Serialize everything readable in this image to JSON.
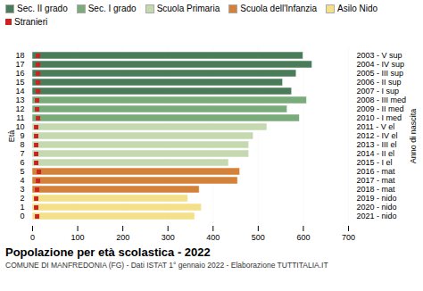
{
  "chart_data": {
    "type": "bar",
    "orientation": "horizontal",
    "title": "Popolazione per età scolastica - 2022",
    "subtitle": "COMUNE DI MANFREDONIA (FG) - Dati ISTAT 1° gennaio 2022 - Elaborazione TUTTITALIA.IT",
    "ylabel": "Età",
    "y2label": "Anno di nascita",
    "categories": [
      18,
      17,
      16,
      15,
      14,
      13,
      12,
      11,
      10,
      9,
      8,
      7,
      6,
      5,
      4,
      3,
      2,
      1,
      0
    ],
    "y2ticks": [
      {
        "value": 18,
        "label": "2003 - V sup"
      },
      {
        "value": 17,
        "label": "2004 - IV sup"
      },
      {
        "value": 16,
        "label": "2005 - III sup"
      },
      {
        "value": 15,
        "label": "2006 - II sup"
      },
      {
        "value": 14,
        "label": "2007 - I sup"
      },
      {
        "value": 13,
        "label": "2008 - III med"
      },
      {
        "value": 12,
        "label": "2009 - II med"
      },
      {
        "value": 11,
        "label": "2010 - I med"
      },
      {
        "value": 10,
        "label": "2011 - V el"
      },
      {
        "value": 9,
        "label": "2012 - IV el"
      },
      {
        "value": 8,
        "label": "2013 - III el"
      },
      {
        "value": 7,
        "label": "2014 - II el"
      },
      {
        "value": 6,
        "label": "2015 - I el"
      },
      {
        "value": 5,
        "label": "2016 - mat"
      },
      {
        "value": 4,
        "label": "2017 - mat"
      },
      {
        "value": 3,
        "label": "2018 - mat"
      },
      {
        "value": 2,
        "label": "2019 - nido"
      },
      {
        "value": 1,
        "label": "2020 - nido"
      },
      {
        "value": 0,
        "label": "2021 - nido"
      }
    ],
    "series": [
      {
        "name": "Sec. II grado",
        "type": "bar",
        "color": "#4a7c59",
        "values": [
          600,
          620,
          585,
          555,
          575,
          null,
          null,
          null,
          null,
          null,
          null,
          null,
          null,
          null,
          null,
          null,
          null,
          null,
          null
        ]
      },
      {
        "name": "Sec. I grado",
        "type": "bar",
        "color": "#7aab7a",
        "values": [
          null,
          null,
          null,
          null,
          null,
          608,
          565,
          592,
          null,
          null,
          null,
          null,
          null,
          null,
          null,
          null,
          null,
          null,
          null
        ]
      },
      {
        "name": "Scuola Primaria",
        "type": "bar",
        "color": "#c5d9b0",
        "values": [
          null,
          null,
          null,
          null,
          null,
          null,
          null,
          null,
          520,
          490,
          480,
          480,
          435,
          null,
          null,
          null,
          null,
          null,
          null
        ]
      },
      {
        "name": "Scuola dell'Infanzia",
        "type": "bar",
        "color": "#d4813a",
        "values": [
          null,
          null,
          null,
          null,
          null,
          null,
          null,
          null,
          null,
          null,
          null,
          null,
          null,
          460,
          455,
          370,
          null,
          null,
          null
        ]
      },
      {
        "name": "Asilo Nido",
        "type": "bar",
        "color": "#f5e08a",
        "values": [
          null,
          null,
          null,
          null,
          null,
          null,
          null,
          null,
          null,
          null,
          null,
          null,
          null,
          null,
          null,
          null,
          345,
          375,
          360
        ]
      },
      {
        "name": "Stranieri",
        "type": "scatter",
        "marker": "square",
        "color": "#cc2222",
        "values": [
          12,
          12,
          12,
          12,
          12,
          10,
          10,
          12,
          8,
          8,
          8,
          8,
          8,
          14,
          12,
          10,
          8,
          8,
          10
        ]
      }
    ],
    "xlim": [
      0,
      700
    ],
    "xticks": [
      0,
      100,
      200,
      300,
      400,
      500,
      600,
      700
    ],
    "grid": true,
    "legend": "upper left"
  }
}
